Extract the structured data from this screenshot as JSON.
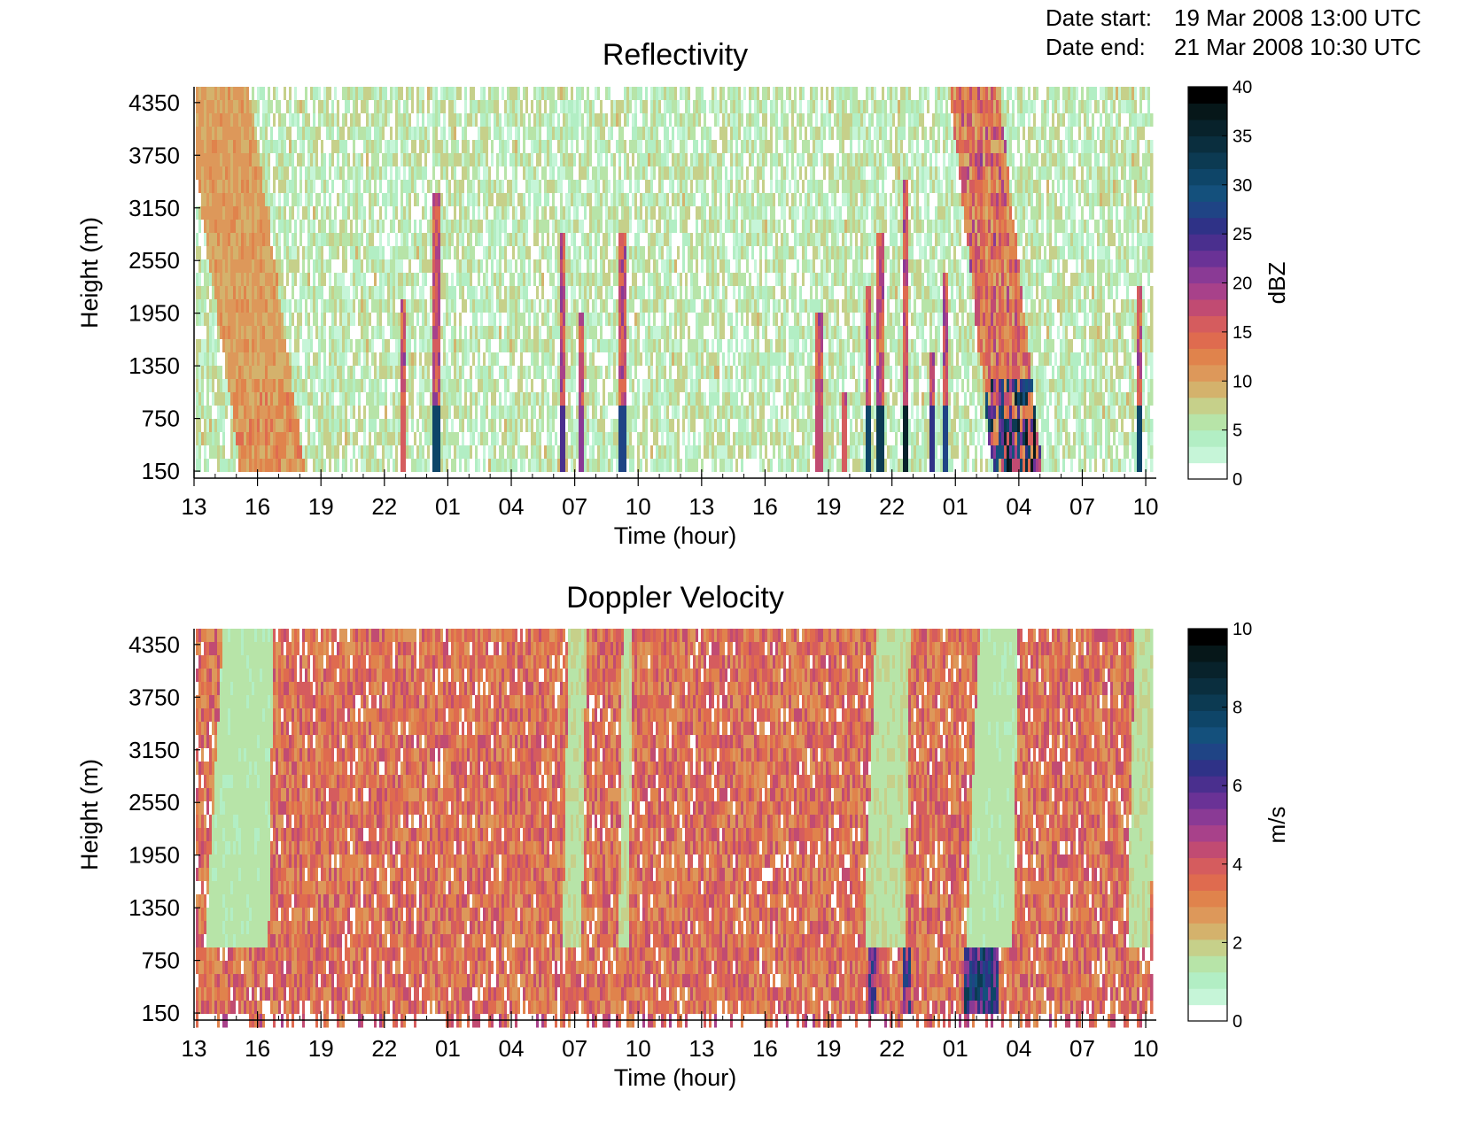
{
  "figure": {
    "date_start_label": "Date start:",
    "date_start_value": "19 Mar 2008 13:00 UTC",
    "date_end_label": "Date end:",
    "date_end_value": "21 Mar 2008 10:30 UTC"
  },
  "chart_data": [
    {
      "type": "heatmap",
      "title": "Reflectivity",
      "xlabel": "Time (hour)",
      "ylabel": "Height (m)",
      "x_tick_labels": [
        "13",
        "16",
        "19",
        "22",
        "01",
        "04",
        "07",
        "10",
        "13",
        "16",
        "19",
        "22",
        "01",
        "04",
        "07",
        "10"
      ],
      "x_range_hours_since_start": [
        0,
        45.5
      ],
      "y_ticks": [
        150,
        750,
        1350,
        1950,
        2550,
        3150,
        3750,
        4350
      ],
      "ylim": [
        90,
        4530
      ],
      "colorbar": {
        "label": "dBZ",
        "ticks": [
          0,
          5,
          10,
          15,
          20,
          25,
          30,
          35,
          40
        ],
        "range": [
          0,
          40
        ],
        "colors": [
          "#ffffff",
          "#c6f5d8",
          "#b2eec4",
          "#b7e4a8",
          "#c6d08a",
          "#d4b26c",
          "#dd985a",
          "#e0834c",
          "#df6b4f",
          "#d55c5e",
          "#c14b72",
          "#a8418a",
          "#8a3a95",
          "#6a3296",
          "#4a2f8e",
          "#2f3287",
          "#1f4485",
          "#14507c",
          "#0e4568",
          "#0c3a52",
          "#0a2e3e",
          "#08222b",
          "#061719",
          "#000000"
        ]
      },
      "features": [
        {
          "kind": "dense_band",
          "x_start_h": 0.3,
          "x_end_h": 3.7,
          "height_top_m": 4530,
          "height_bottom_m": 0,
          "peak_dbz": 14
        },
        {
          "kind": "streak",
          "x_h": 9.8,
          "height_top_m": 2100,
          "peak_dbz": 16
        },
        {
          "kind": "streak",
          "x_h": 11.4,
          "height_top_m": 3350,
          "peak_dbz": 30
        },
        {
          "kind": "streak",
          "x_h": 17.4,
          "height_top_m": 2900,
          "peak_dbz": 24
        },
        {
          "kind": "streak",
          "x_h": 18.2,
          "height_top_m": 1900,
          "peak_dbz": 20
        },
        {
          "kind": "streak",
          "x_h": 20.2,
          "height_top_m": 2800,
          "peak_dbz": 27
        },
        {
          "kind": "streak",
          "x_h": 29.5,
          "height_top_m": 2000,
          "peak_dbz": 18
        },
        {
          "kind": "streak",
          "x_h": 30.7,
          "height_top_m": 1000,
          "peak_dbz": 16
        },
        {
          "kind": "streak",
          "x_h": 31.8,
          "height_top_m": 2300,
          "peak_dbz": 30
        },
        {
          "kind": "streak",
          "x_h": 32.4,
          "height_top_m": 2800,
          "peak_dbz": 32
        },
        {
          "kind": "streak",
          "x_h": 33.6,
          "height_top_m": 3400,
          "peak_dbz": 36
        },
        {
          "kind": "streak",
          "x_h": 34.8,
          "height_top_m": 1500,
          "peak_dbz": 26
        },
        {
          "kind": "streak",
          "x_h": 35.5,
          "height_top_m": 2400,
          "peak_dbz": 28
        },
        {
          "kind": "dense_band",
          "x_start_h": 36.3,
          "x_end_h": 38.9,
          "height_top_m": 4530,
          "height_bottom_m": 0,
          "peak_dbz": 38
        },
        {
          "kind": "streak",
          "x_h": 44.6,
          "height_top_m": 2200,
          "peak_dbz": 30
        }
      ]
    },
    {
      "type": "heatmap",
      "title": "Doppler Velocity",
      "xlabel": "Time (hour)",
      "ylabel": "Height (m)",
      "x_tick_labels": [
        "13",
        "16",
        "19",
        "22",
        "01",
        "04",
        "07",
        "10",
        "13",
        "16",
        "19",
        "22",
        "01",
        "04",
        "07",
        "10"
      ],
      "x_range_hours_since_start": [
        0,
        45.5
      ],
      "y_ticks": [
        150,
        750,
        1350,
        1950,
        2550,
        3150,
        3750,
        4350
      ],
      "ylim": [
        90,
        4530
      ],
      "colorbar": {
        "label": "m/s",
        "ticks": [
          0,
          2,
          4,
          6,
          8,
          10
        ],
        "range": [
          0,
          10
        ],
        "colors": [
          "#ffffff",
          "#c6f5d8",
          "#b2eec4",
          "#b7e4a8",
          "#c6d08a",
          "#d4b26c",
          "#dd985a",
          "#e0834c",
          "#df6b4f",
          "#d55c5e",
          "#c14b72",
          "#a8418a",
          "#8a3a95",
          "#6a3296",
          "#4a2f8e",
          "#2f3287",
          "#1f4485",
          "#14507c",
          "#0e4568",
          "#0c3a52",
          "#0a2e3e",
          "#08222b",
          "#061719",
          "#000000"
        ]
      },
      "background_range_ms": [
        2.5,
        4.5
      ],
      "features": [
        {
          "kind": "slow_band",
          "x_start_h": 0.3,
          "x_end_h": 3.7,
          "velocity_ms": 1.2
        },
        {
          "kind": "slow_band",
          "x_start_h": 17.3,
          "x_end_h": 18.5,
          "velocity_ms": 1.4
        },
        {
          "kind": "slow_band",
          "x_start_h": 20.0,
          "x_end_h": 20.7,
          "velocity_ms": 1.4
        },
        {
          "kind": "slow_band",
          "x_start_h": 31.5,
          "x_end_h": 33.8,
          "velocity_ms": 1.4
        },
        {
          "kind": "slow_band",
          "x_start_h": 36.3,
          "x_end_h": 38.9,
          "velocity_ms": 1.2
        },
        {
          "kind": "slow_band",
          "x_start_h": 44.0,
          "x_end_h": 45.4,
          "velocity_ms": 1.4
        },
        {
          "kind": "fast_near_ground",
          "x_start_h": 36.3,
          "x_end_h": 38.0,
          "velocity_ms": 7.0
        },
        {
          "kind": "fast_near_ground",
          "x_start_h": 31.8,
          "x_end_h": 32.2,
          "velocity_ms": 6.0
        },
        {
          "kind": "fast_near_ground",
          "x_start_h": 33.4,
          "x_end_h": 33.8,
          "velocity_ms": 6.0
        }
      ]
    }
  ]
}
